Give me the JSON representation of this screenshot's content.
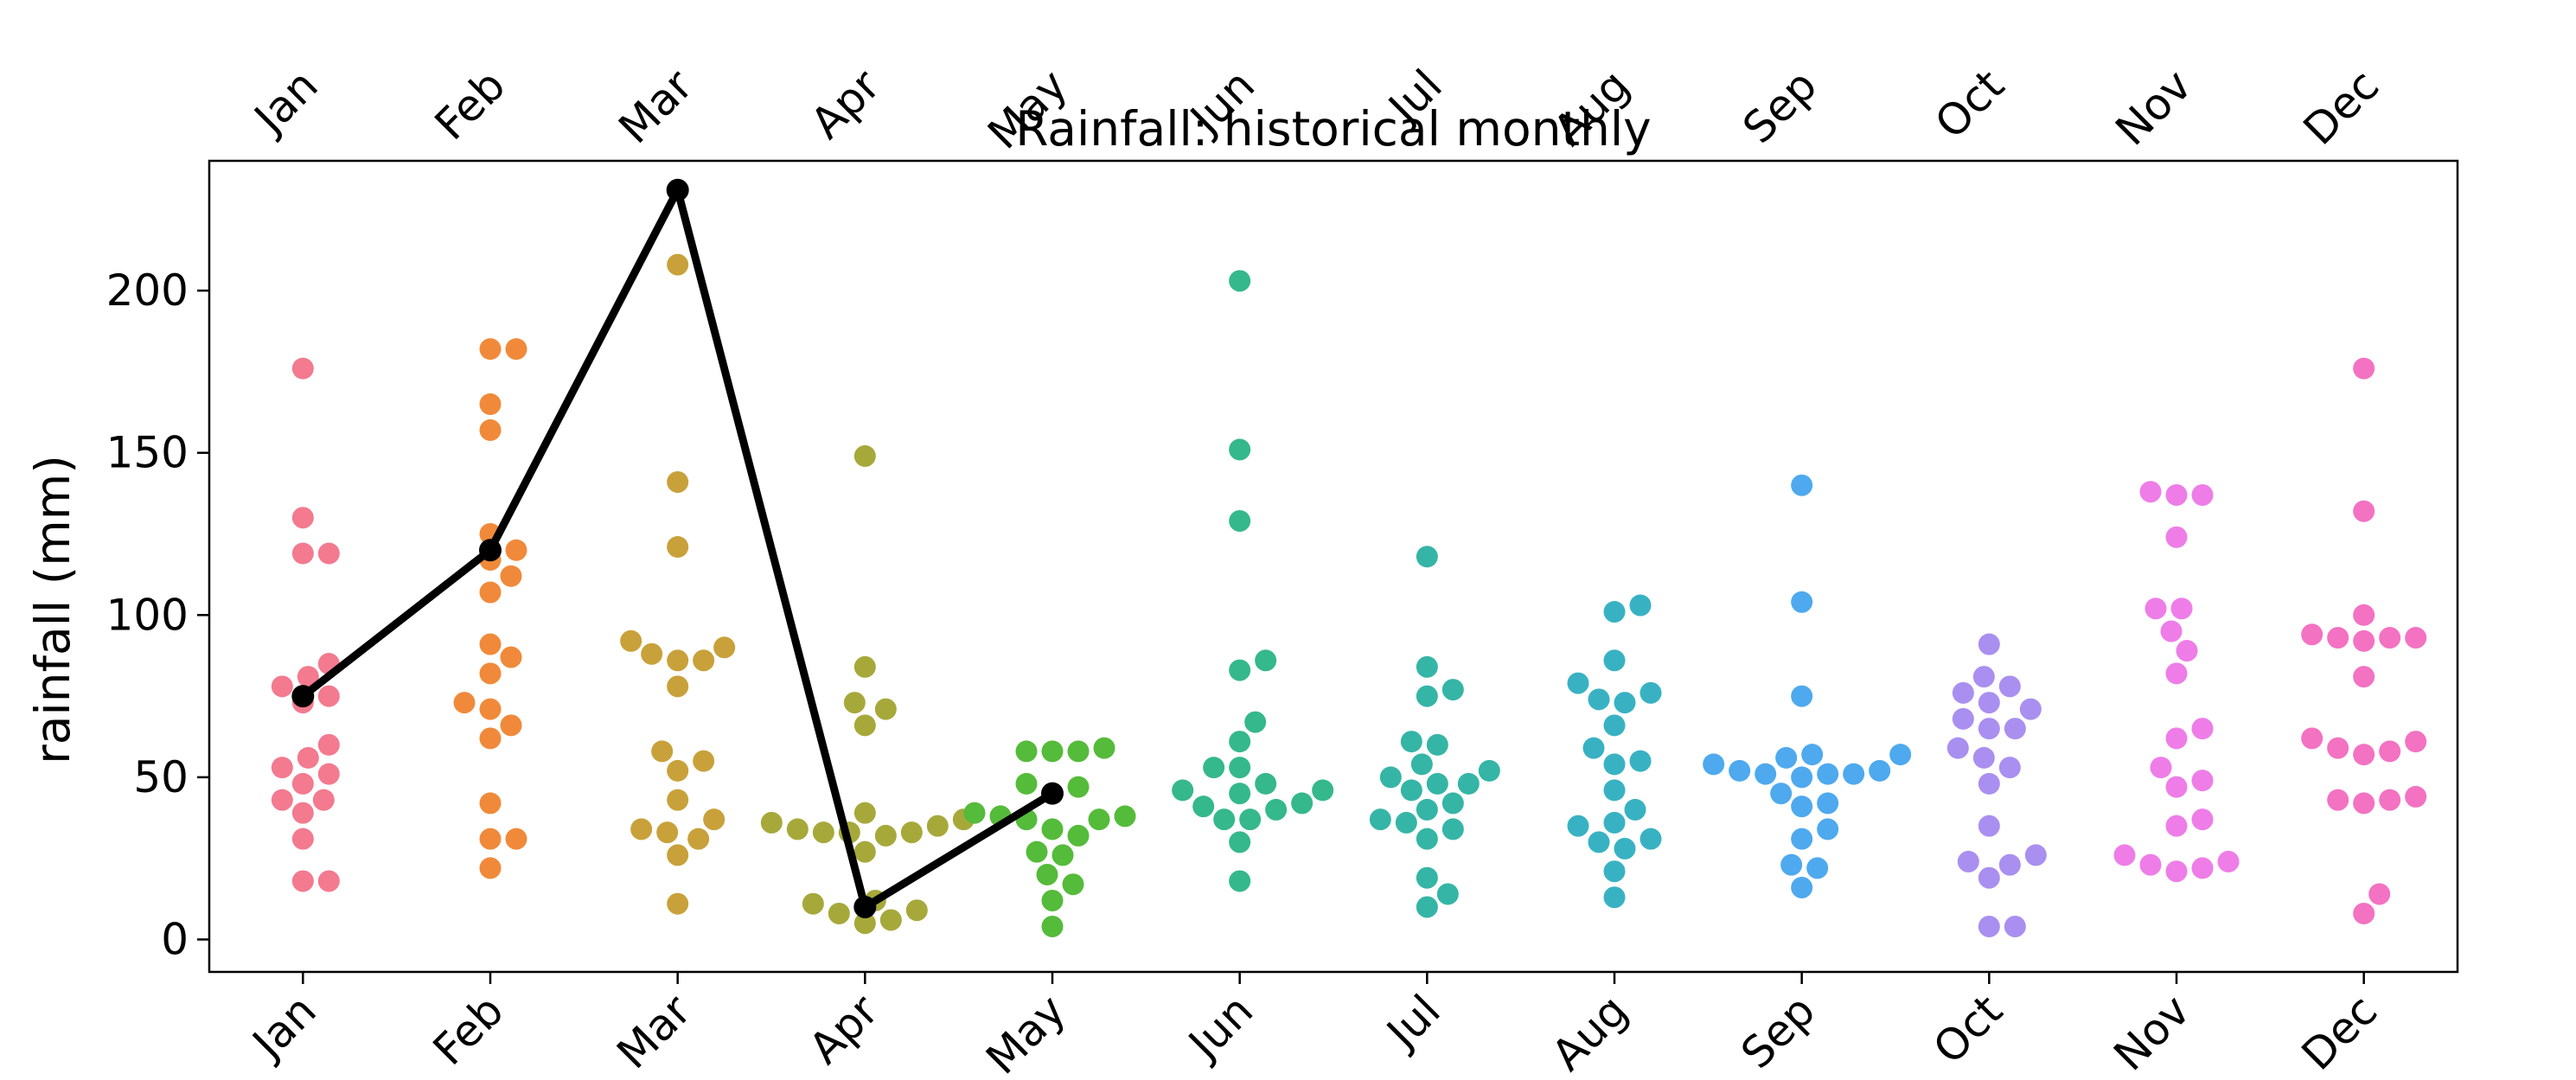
{
  "chart_data": {
    "type": "scatter",
    "title": "Rainfall: historical monthly",
    "xlabel": "",
    "ylabel": "rainfall (mm)",
    "categories": [
      "Jan",
      "Feb",
      "Mar",
      "Apr",
      "May",
      "Jun",
      "Jul",
      "Aug",
      "Sep",
      "Oct",
      "Nov",
      "Dec"
    ],
    "top_axis_labels": [
      "Jan",
      "Feb",
      "Mar",
      "Apr",
      "May",
      "Jun",
      "Jul",
      "Aug",
      "Sep",
      "Oct",
      "Nov",
      "Dec"
    ],
    "ylim": [
      -10,
      240
    ],
    "yticks": [
      0,
      50,
      100,
      150,
      200
    ],
    "grid": false,
    "legend": "none",
    "colors": [
      "#f37a8f",
      "#f08a3a",
      "#c8a13a",
      "#a6a93a",
      "#55bb3a",
      "#35b88c",
      "#35b5a6",
      "#38b2c3",
      "#4ea9ee",
      "#a98ff0",
      "#ee7de8",
      "#f372c2"
    ],
    "historical": [
      [
        176,
        130,
        119,
        119,
        85,
        81,
        78,
        75,
        73,
        60,
        56,
        53,
        51,
        48,
        43,
        43,
        39,
        31,
        18,
        18
      ],
      [
        182,
        182,
        165,
        157,
        125,
        120,
        117,
        112,
        107,
        91,
        87,
        82,
        73,
        71,
        66,
        62,
        42,
        31,
        31,
        22
      ],
      [
        208,
        141,
        121,
        92,
        90,
        88,
        86,
        86,
        78,
        58,
        55,
        52,
        43,
        37,
        34,
        33,
        31,
        26,
        11
      ],
      [
        149,
        84,
        73,
        71,
        66,
        39,
        37,
        36,
        35,
        34,
        33,
        33,
        33,
        32,
        27,
        12,
        11,
        9,
        8,
        6,
        5
      ],
      [
        59,
        58,
        58,
        58,
        48,
        47,
        45,
        39,
        38,
        38,
        37,
        37,
        34,
        32,
        27,
        26,
        20,
        17,
        12,
        4
      ],
      [
        203,
        151,
        129,
        86,
        83,
        67,
        61,
        53,
        53,
        48,
        46,
        46,
        45,
        42,
        41,
        40,
        37,
        37,
        30,
        18
      ],
      [
        118,
        84,
        77,
        75,
        61,
        60,
        54,
        52,
        50,
        48,
        48,
        46,
        42,
        40,
        37,
        36,
        34,
        31,
        19,
        14,
        10
      ],
      [
        103,
        101,
        86,
        79,
        76,
        74,
        73,
        66,
        59,
        55,
        54,
        46,
        40,
        36,
        35,
        31,
        30,
        28,
        21,
        13
      ],
      [
        140,
        104,
        75,
        57,
        57,
        56,
        54,
        52,
        52,
        51,
        51,
        51,
        50,
        45,
        42,
        41,
        34,
        31,
        23,
        22,
        16
      ],
      [
        91,
        81,
        78,
        76,
        73,
        71,
        68,
        65,
        65,
        59,
        56,
        53,
        48,
        35,
        26,
        24,
        23,
        19,
        4,
        4
      ],
      [
        138,
        137,
        137,
        124,
        102,
        102,
        95,
        89,
        82,
        65,
        62,
        53,
        49,
        47,
        37,
        35,
        26,
        24,
        23,
        22,
        21
      ],
      [
        176,
        132,
        100,
        94,
        93,
        93,
        93,
        92,
        81,
        62,
        61,
        59,
        58,
        57,
        44,
        43,
        43,
        42,
        14,
        8
      ]
    ],
    "current_series": [
      75,
      120,
      231,
      10,
      45
    ]
  }
}
